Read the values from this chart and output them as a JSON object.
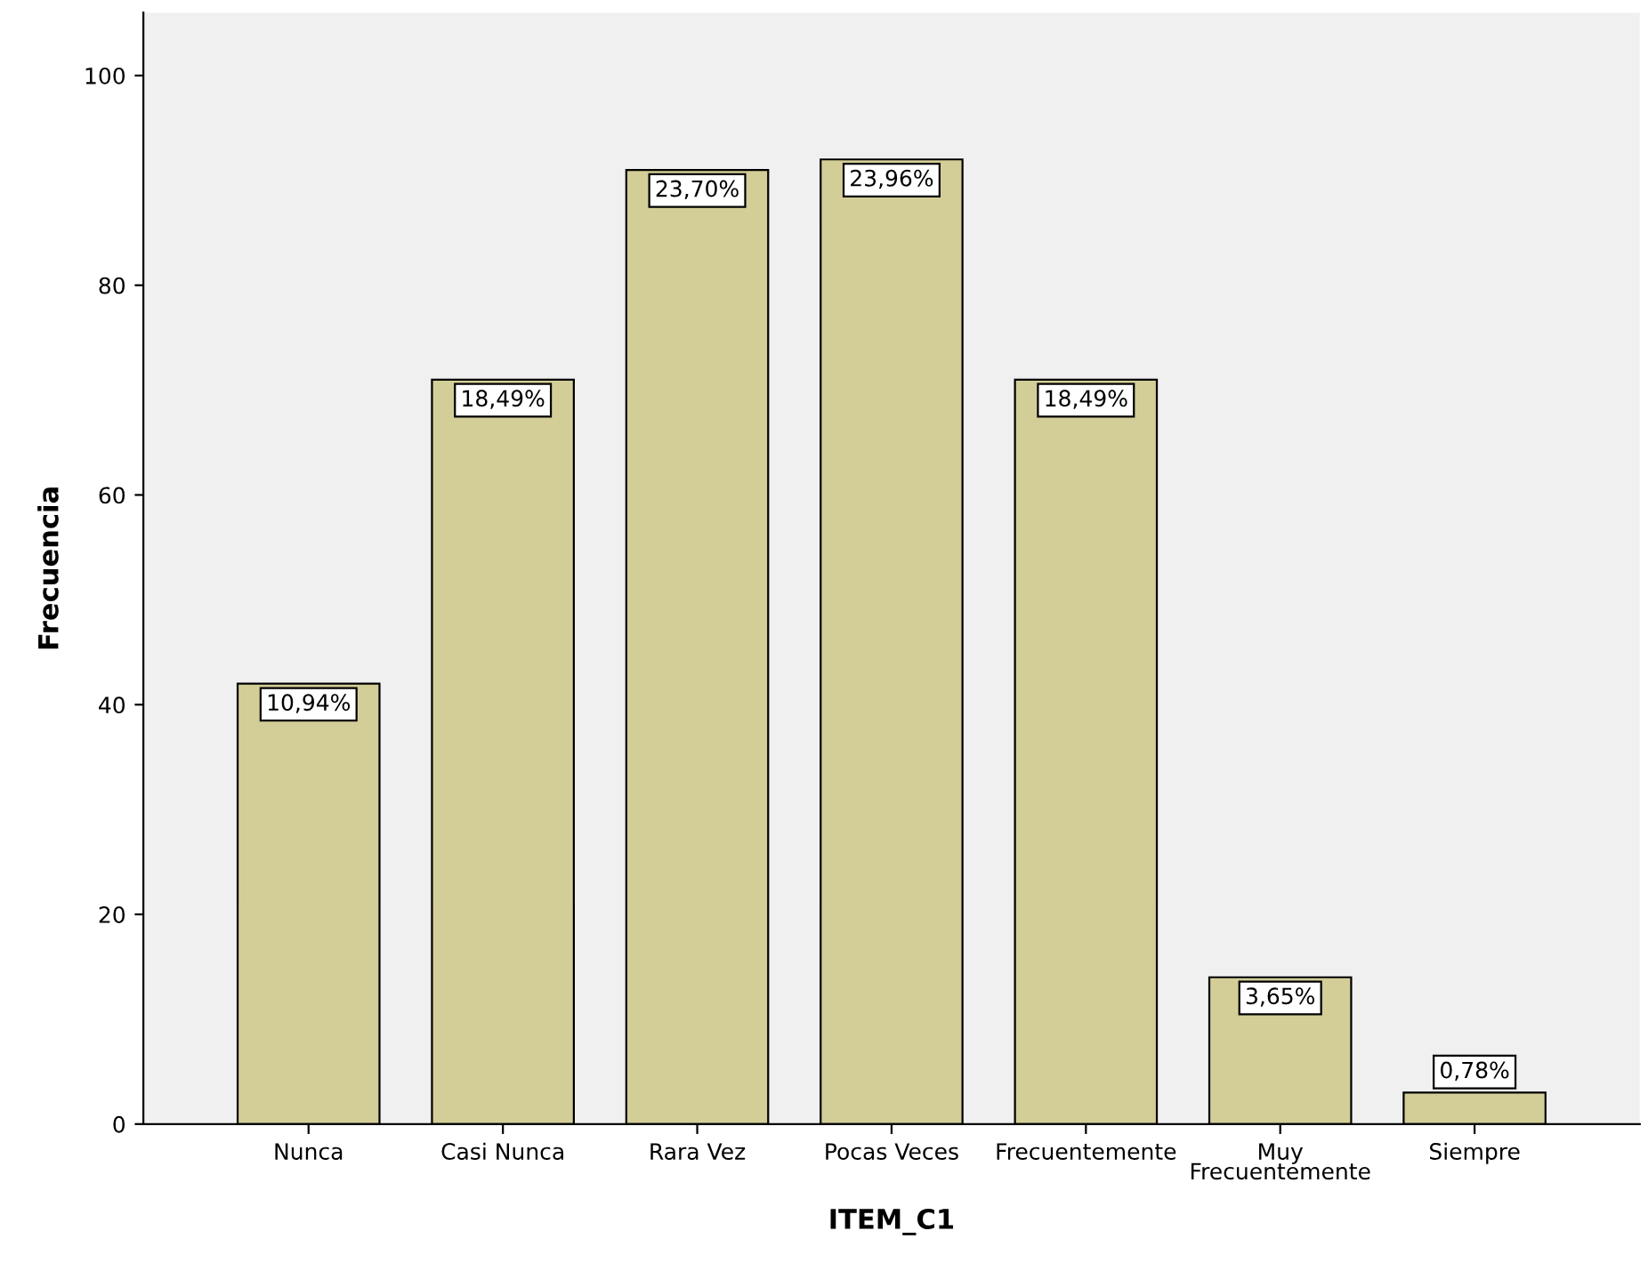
{
  "chart_data": {
    "type": "bar",
    "xlabel": "ITEM_C1",
    "ylabel": "Frecuencia",
    "categories": [
      "Nunca",
      "Casi Nunca",
      "Rara Vez",
      "Pocas Veces",
      "Frecuentemente",
      "Muy\nFrecuentemente",
      "Siempre"
    ],
    "values": [
      42,
      71,
      91,
      92,
      71,
      14,
      3
    ],
    "annotations": [
      {
        "text": "10,94%",
        "x": "Nunca",
        "y": 42
      },
      {
        "text": "18,49%",
        "x": "Casi Nunca",
        "y": 71
      },
      {
        "text": "23,70%",
        "x": "Rara Vez",
        "y": 91
      },
      {
        "text": "23,96%",
        "x": "Pocas Veces",
        "y": 92
      },
      {
        "text": "18,49%",
        "x": "Frecuentemente",
        "y": 71
      },
      {
        "text": "3,65%",
        "x": "Muy\nFrecuentemente",
        "y": 14
      },
      {
        "text": "0,78%",
        "x": "Siempre",
        "y": 3
      }
    ],
    "color": "#d3ce97",
    "ylim": [
      0,
      106
    ],
    "yticks": [
      0,
      20,
      40,
      60,
      80,
      100
    ],
    "grid": false,
    "legend": false
  }
}
